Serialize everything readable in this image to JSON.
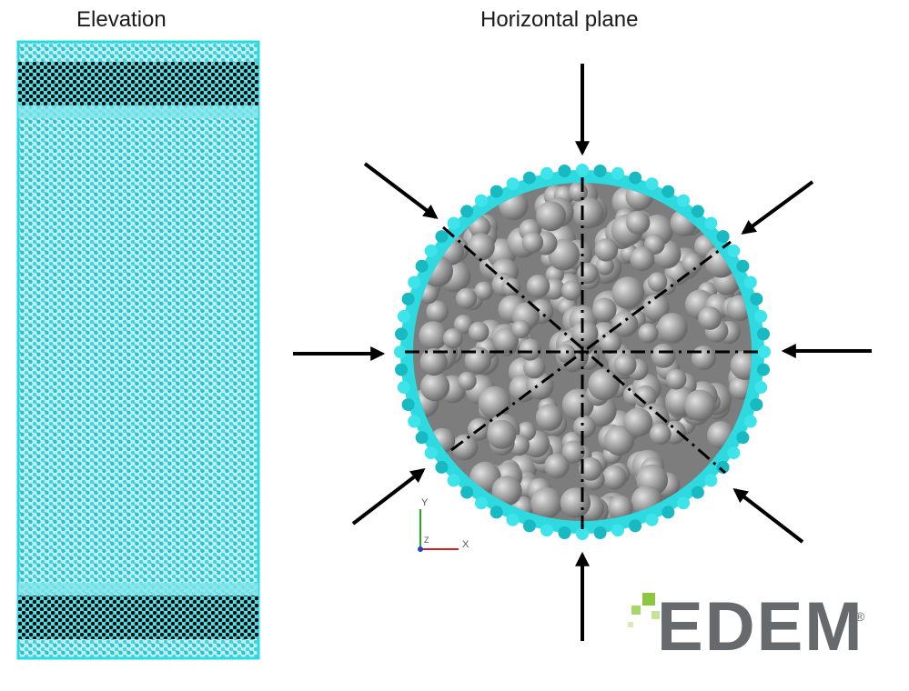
{
  "labels": {
    "elevation": "Elevation",
    "horizontal_plane": "Horizontal plane"
  },
  "axes_triad": {
    "x_label": "X",
    "y_label": "Y",
    "z_label": "Z"
  },
  "logo": {
    "text": "EDEM",
    "registered_mark": "®"
  },
  "colors": {
    "membrane": "#2fd9e0",
    "membrane_dark": "#18a9b0",
    "end_band": "#111111",
    "particles": "#9a9a9a",
    "arrows": "#000000",
    "logo_grey": "#666a6d",
    "logo_green": "#8dc63f",
    "axis_x": "#cc2222",
    "axis_y": "#22aa22",
    "axis_z": "#2244cc"
  },
  "loading": {
    "arrow_count": 8,
    "direction": "radial-inward"
  }
}
